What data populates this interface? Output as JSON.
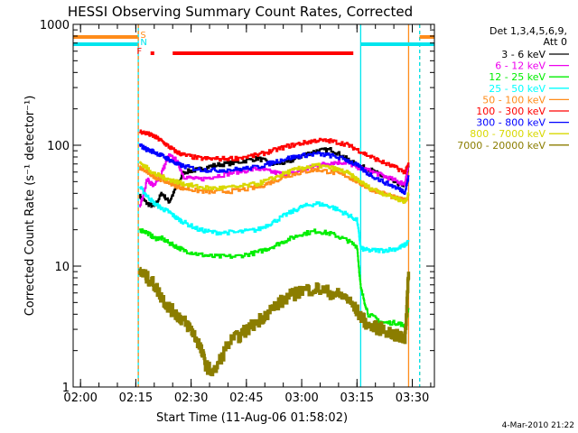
{
  "chart_data": {
    "type": "line",
    "title": "HESSI Observing Summary Count Rates, Corrected",
    "xlabel": "Start Time (11-Aug-06 01:58:02)",
    "ylabel": "Corrected Count Rate (s⁻¹ detector⁻¹)",
    "y_scale": "log",
    "ylim": [
      1,
      1000
    ],
    "xlim": [
      "01:58",
      "03:36"
    ],
    "x_ticks": [
      "02:00",
      "02:15",
      "02:30",
      "02:45",
      "03:00",
      "03:15",
      "03:30"
    ],
    "y_ticks": [
      "1",
      "10",
      "100",
      "1000"
    ],
    "grid": false,
    "legend_position": "right",
    "legend_header": [
      "Det 1,3,4,5,6,9,",
      "Att 0"
    ],
    "footer": "4-Mar-2010 21:22",
    "flags": {
      "letters": [
        "S",
        "N",
        "F"
      ],
      "colors": {
        "S": "#ff8c1a",
        "N": "#00e5ee",
        "F": "#ff0000"
      },
      "saa_periods": [
        [
          "01:58",
          "02:15:30"
        ],
        [
          "03:32",
          "03:36"
        ]
      ],
      "night_periods": [
        [
          "01:58",
          "02:15:30"
        ],
        [
          "03:16",
          "03:36"
        ]
      ],
      "flare_periods": [
        [
          "02:19",
          "02:20"
        ],
        [
          "02:25",
          "03:14"
        ]
      ]
    },
    "vertical_lines": [
      {
        "time": "02:15:40",
        "color": "#00e5ee",
        "style": "solid"
      },
      {
        "time": "02:15:40",
        "color": "#ff8c1a",
        "style": "dashed"
      },
      {
        "time": "03:16",
        "color": "#00e5ee",
        "style": "solid"
      },
      {
        "time": "03:29",
        "color": "#ff8c1a",
        "style": "solid"
      },
      {
        "time": "03:32",
        "color": "#ff8c1a",
        "style": "dashed"
      },
      {
        "time": "03:32",
        "color": "#00e5ee",
        "style": "dashed"
      }
    ],
    "series": [
      {
        "name": "3 - 6 keV",
        "color": "#000000",
        "x": [
          "02:16",
          "02:18",
          "02:20",
          "02:22",
          "02:24",
          "02:26",
          "02:28",
          "02:32",
          "02:36",
          "02:42",
          "02:48",
          "02:52",
          "02:56",
          "03:00",
          "03:04",
          "03:08",
          "03:12",
          "03:15",
          "03:18",
          "03:22",
          "03:26",
          "03:28",
          "03:29"
        ],
        "y": [
          38,
          33,
          31,
          40,
          34,
          45,
          60,
          63,
          68,
          72,
          78,
          70,
          72,
          82,
          90,
          92,
          78,
          68,
          64,
          55,
          48,
          47,
          70
        ]
      },
      {
        "name": "6 - 12 keV",
        "color": "#ee00ee",
        "x": [
          "02:16",
          "02:18",
          "02:20",
          "02:22",
          "02:24",
          "02:26",
          "02:28",
          "02:32",
          "02:36",
          "02:42",
          "02:48",
          "02:52",
          "02:56",
          "03:00",
          "03:04",
          "03:08",
          "03:12",
          "03:15",
          "03:18",
          "03:22",
          "03:26",
          "03:28",
          "03:29"
        ],
        "y": [
          30,
          52,
          46,
          60,
          82,
          75,
          55,
          52,
          55,
          60,
          64,
          60,
          57,
          62,
          68,
          72,
          72,
          66,
          62,
          56,
          50,
          48,
          70
        ]
      },
      {
        "name": "12 - 25 keV",
        "color": "#00ee00",
        "x": [
          "02:16",
          "02:18",
          "02:20",
          "02:22",
          "02:24",
          "02:26",
          "02:28",
          "02:32",
          "02:36",
          "02:42",
          "02:48",
          "02:52",
          "02:56",
          "03:00",
          "03:04",
          "03:08",
          "03:12",
          "03:15",
          "03:16",
          "03:18",
          "03:22",
          "03:26",
          "03:28",
          "03:29"
        ],
        "y": [
          20,
          19,
          17,
          17,
          15.5,
          14.5,
          13.5,
          12.5,
          12,
          12,
          13,
          14.5,
          16.5,
          18.5,
          19.5,
          18.5,
          16.5,
          14.5,
          6.5,
          4,
          3.4,
          3.4,
          3.2,
          4.5
        ]
      },
      {
        "name": "25 - 50 keV",
        "color": "#00ffff",
        "x": [
          "02:16",
          "02:18",
          "02:20",
          "02:22",
          "02:24",
          "02:26",
          "02:28",
          "02:32",
          "02:36",
          "02:42",
          "02:48",
          "02:52",
          "02:56",
          "03:00",
          "03:04",
          "03:08",
          "03:12",
          "03:15",
          "03:16",
          "03:18",
          "03:22",
          "03:26",
          "03:28",
          "03:29"
        ],
        "y": [
          45,
          38,
          33,
          30,
          28,
          25,
          23,
          20,
          19,
          19,
          20,
          23,
          27,
          31,
          33,
          31,
          27,
          24,
          14,
          13.5,
          13.5,
          14,
          15,
          16
        ]
      },
      {
        "name": "50 - 100 keV",
        "color": "#ff8c1a",
        "x": [
          "02:16",
          "02:18",
          "02:20",
          "02:22",
          "02:24",
          "02:26",
          "02:28",
          "02:32",
          "02:36",
          "02:42",
          "02:48",
          "02:52",
          "02:56",
          "03:00",
          "03:04",
          "03:08",
          "03:12",
          "03:15",
          "03:18",
          "03:22",
          "03:26",
          "03:28",
          "03:29"
        ],
        "y": [
          65,
          60,
          55,
          52,
          49,
          46,
          44,
          42,
          41,
          42,
          45,
          50,
          56,
          60,
          63,
          60,
          56,
          50,
          44,
          40,
          36,
          35,
          38
        ]
      },
      {
        "name": "100 - 300 keV",
        "color": "#ff0000",
        "x": [
          "02:16",
          "02:18",
          "02:20",
          "02:22",
          "02:24",
          "02:26",
          "02:28",
          "02:32",
          "02:36",
          "02:42",
          "02:48",
          "02:52",
          "02:56",
          "03:00",
          "03:04",
          "03:08",
          "03:12",
          "03:15",
          "03:18",
          "03:22",
          "03:26",
          "03:28",
          "03:29"
        ],
        "y": [
          130,
          125,
          118,
          108,
          97,
          88,
          83,
          78,
          77,
          78,
          83,
          90,
          98,
          104,
          110,
          108,
          102,
          92,
          82,
          72,
          64,
          60,
          70
        ]
      },
      {
        "name": "300 - 800 keV",
        "color": "#0000ff",
        "x": [
          "02:16",
          "02:18",
          "02:20",
          "02:22",
          "02:24",
          "02:26",
          "02:28",
          "02:32",
          "02:36",
          "02:42",
          "02:48",
          "02:52",
          "02:56",
          "03:00",
          "03:04",
          "03:08",
          "03:12",
          "03:15",
          "03:18",
          "03:22",
          "03:26",
          "03:28",
          "03:29"
        ],
        "y": [
          100,
          92,
          88,
          82,
          76,
          70,
          67,
          63,
          62,
          63,
          66,
          72,
          78,
          82,
          85,
          82,
          76,
          68,
          58,
          50,
          44,
          41,
          55
        ]
      },
      {
        "name": "800 - 7000 keV",
        "color": "#d8d800",
        "x": [
          "02:16",
          "02:18",
          "02:20",
          "02:22",
          "02:24",
          "02:26",
          "02:28",
          "02:32",
          "02:36",
          "02:42",
          "02:48",
          "02:52",
          "02:56",
          "03:00",
          "03:04",
          "03:08",
          "03:12",
          "03:15",
          "03:18",
          "03:22",
          "03:26",
          "03:28",
          "03:29"
        ],
        "y": [
          72,
          65,
          58,
          55,
          52,
          50,
          48,
          45,
          44,
          45,
          48,
          53,
          60,
          65,
          68,
          65,
          60,
          52,
          45,
          40,
          36,
          34,
          40
        ]
      },
      {
        "name": "7000 - 20000 keV",
        "color": "#8b7d00",
        "x": [
          "02:16",
          "02:18",
          "02:20",
          "02:22",
          "02:24",
          "02:26",
          "02:28",
          "02:30",
          "02:32",
          "02:34",
          "02:36",
          "02:40",
          "02:44",
          "02:48",
          "02:52",
          "02:56",
          "03:00",
          "03:04",
          "03:08",
          "03:12",
          "03:15",
          "03:18",
          "03:22",
          "03:26",
          "03:28",
          "03:29"
        ],
        "y": [
          9,
          8,
          7,
          5.5,
          4.5,
          4,
          3.5,
          3,
          2.3,
          1.5,
          1.3,
          2.3,
          2.8,
          3.5,
          4.5,
          5.5,
          6.3,
          6.5,
          6,
          5.5,
          4.2,
          3.2,
          3,
          2.6,
          2.5,
          9
        ]
      }
    ]
  }
}
